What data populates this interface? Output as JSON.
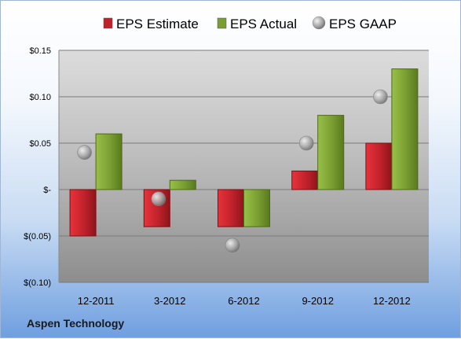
{
  "company": "Aspen Technology",
  "chart_data": {
    "type": "bar",
    "categories": [
      "12-2011",
      "3-2012",
      "6-2012",
      "9-2012",
      "12-2012"
    ],
    "series": [
      {
        "name": "EPS Estimate",
        "kind": "bar",
        "color": "#c0222b",
        "values": [
          -0.05,
          -0.04,
          -0.04,
          0.02,
          0.05
        ]
      },
      {
        "name": "EPS Actual",
        "kind": "bar",
        "color": "#7a9e32",
        "values": [
          0.06,
          0.01,
          -0.04,
          0.08,
          0.13
        ]
      },
      {
        "name": "EPS GAAP",
        "kind": "marker",
        "color": "#a6a6a6",
        "values": [
          0.04,
          -0.01,
          -0.06,
          0.05,
          0.1
        ]
      }
    ],
    "ylim": [
      -0.1,
      0.15
    ],
    "yticks": [
      0.15,
      0.1,
      0.05,
      0,
      -0.05,
      -0.1
    ],
    "ytick_labels": [
      "$0.15",
      "$0.10",
      "$0.05",
      "$-",
      "$(0.05)",
      "$(0.10)"
    ],
    "grid": true,
    "legend_position": "top"
  }
}
